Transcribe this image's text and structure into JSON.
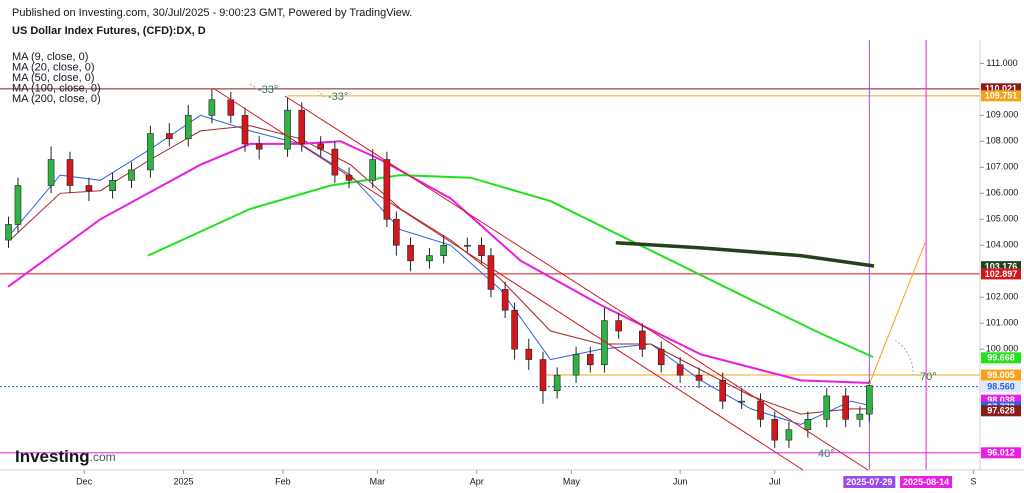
{
  "header": {
    "published": "Published on Investing.com, 30/Jul/2025 - 9:00:23 GMT, Powered by TradingView.",
    "logo_main": "Investing",
    "logo_suffix": ".com"
  },
  "chart_data": {
    "type": "candlestick",
    "title": "US Dollar Index Futures, (CFD):DX, D",
    "up_color": "#2fb344",
    "down_color": "#d3171c",
    "x": [
      -16,
      -14,
      -7,
      -3,
      1,
      6,
      10,
      14,
      18,
      22,
      27,
      31,
      34,
      37,
      43,
      46,
      50,
      53,
      56,
      61,
      64,
      66,
      69,
      73,
      76,
      81,
      84,
      86,
      89,
      91,
      94,
      97,
      100,
      104,
      107,
      110,
      113,
      118,
      122,
      126,
      130,
      135,
      139,
      143,
      146,
      149,
      153,
      157,
      161,
      164,
      166
    ],
    "open": [
      104.2,
      104.8,
      106.3,
      107.3,
      106.3,
      106.1,
      106.5,
      106.9,
      108.3,
      108.1,
      109.0,
      109.6,
      109.0,
      107.9,
      107.7,
      109.2,
      107.9,
      107.7,
      106.7,
      106.5,
      107.3,
      105.0,
      104.0,
      103.4,
      103.6,
      104.0,
      104.0,
      103.6,
      102.3,
      101.5,
      100.0,
      99.6,
      98.4,
      99.0,
      99.8,
      99.4,
      101.1,
      100.7,
      100.0,
      99.4,
      99.0,
      98.8,
      98.0,
      98.0,
      97.3,
      96.5,
      96.9,
      97.3,
      98.2,
      97.3,
      97.5
    ],
    "high": [
      105.1,
      106.6,
      107.8,
      107.6,
      106.6,
      106.8,
      107.2,
      108.6,
      108.7,
      109.4,
      110.0,
      109.9,
      109.3,
      108.2,
      109.7,
      109.5,
      108.2,
      108.0,
      107.0,
      107.7,
      107.6,
      105.3,
      104.3,
      103.9,
      104.4,
      104.3,
      104.3,
      103.9,
      102.6,
      101.8,
      100.4,
      99.9,
      99.3,
      100.1,
      100.1,
      101.6,
      101.4,
      101.0,
      100.3,
      99.7,
      99.3,
      99.1,
      98.5,
      98.3,
      97.6,
      97.2,
      97.6,
      98.5,
      98.5,
      97.8,
      98.8
    ],
    "low": [
      103.9,
      104.5,
      106.0,
      106.0,
      105.7,
      105.8,
      106.2,
      106.6,
      107.8,
      107.8,
      108.7,
      108.7,
      107.6,
      107.3,
      107.4,
      107.6,
      107.4,
      106.4,
      106.2,
      106.2,
      104.7,
      103.6,
      103.0,
      103.1,
      103.3,
      103.7,
      103.3,
      102.0,
      101.2,
      99.6,
      99.2,
      97.9,
      98.1,
      98.7,
      99.1,
      99.1,
      100.4,
      99.7,
      99.1,
      98.7,
      98.5,
      97.7,
      97.7,
      97.0,
      96.2,
      96.2,
      96.6,
      97.0,
      97.0,
      97.0,
      97.2
    ],
    "close": [
      104.8,
      106.3,
      107.3,
      106.3,
      106.1,
      106.5,
      106.9,
      108.3,
      108.1,
      109.0,
      109.6,
      109.0,
      107.9,
      107.7,
      109.2,
      107.9,
      107.7,
      106.7,
      106.5,
      107.3,
      105.0,
      104.0,
      103.4,
      103.6,
      104.0,
      104.0,
      103.6,
      102.3,
      101.5,
      100.0,
      99.6,
      98.4,
      99.0,
      99.8,
      99.4,
      101.1,
      100.7,
      100.0,
      99.4,
      99.0,
      98.8,
      98.0,
      98.0,
      97.3,
      96.5,
      96.9,
      97.3,
      98.2,
      97.3,
      97.5,
      98.6
    ],
    "series": [
      {
        "name": "MA (9, close, 0)",
        "color": "#2b5fe8",
        "width": 1,
        "x": [
          -15.7,
          -5.1,
          3.4,
          14,
          24.6,
          35.1,
          45.7,
          56.3,
          66.9,
          77.5,
          88,
          98.6,
          109.2,
          119.8,
          130.4,
          141,
          151.5,
          162.1,
          166.8
        ],
        "values": [
          104.4,
          106.7,
          106.5,
          107.7,
          109.0,
          108.4,
          107.9,
          106.7,
          104.6,
          104.0,
          102.3,
          99.6,
          100.0,
          100.2,
          98.8,
          97.7,
          97.1,
          98.0,
          97.8
        ]
      },
      {
        "name": "MA (20, close, 0)",
        "color": "#9b2a2a",
        "width": 1,
        "x": [
          -15.7,
          -5.1,
          3.4,
          14,
          24.6,
          35.1,
          45.7,
          56.3,
          66.9,
          77.5,
          88,
          98.6,
          109.2,
          119.8,
          130.4,
          141,
          151.5,
          162.1,
          166.8
        ],
        "values": [
          104.2,
          106.0,
          106.1,
          107.3,
          108.4,
          108.6,
          108.1,
          107.1,
          105.4,
          104.2,
          102.7,
          100.7,
          100.2,
          100.2,
          99.2,
          98.2,
          97.5,
          97.7,
          97.7
        ]
      },
      {
        "name": "MA (50, close, 0)",
        "color": "#e81ee0",
        "width": 2,
        "x": [
          -16.1,
          3.4,
          24.6,
          35.1,
          45.7,
          54.2,
          62.6,
          77.5,
          92.3,
          109.2,
          130.4,
          151.5,
          166.3
        ],
        "values": [
          102.4,
          105.0,
          107.1,
          107.9,
          107.9,
          108.0,
          107.3,
          105.8,
          103.4,
          101.7,
          99.8,
          98.8,
          98.7
        ]
      },
      {
        "name": "MA (100, close, 0)",
        "color": "#22e01e",
        "width": 2,
        "x": [
          13.5,
          35.1,
          52.1,
          66.9,
          81.7,
          98.6,
          119.8,
          141,
          155.8,
          166.8
        ],
        "values": [
          103.6,
          105.4,
          106.3,
          106.7,
          106.6,
          105.7,
          103.8,
          101.9,
          100.6,
          99.7
        ]
      },
      {
        "name": "MA (200, close, 0)",
        "color": "#24401c",
        "width": 3.5,
        "x": [
          112.4,
          130.4,
          151.5,
          167
        ],
        "values": [
          104.1,
          103.9,
          103.6,
          103.2
        ]
      }
    ],
    "xlim": [
      -17.8,
      189.4
    ],
    "ylim": [
      95.35,
      111.9
    ],
    "xticks": [
      {
        "value": 0,
        "label": "Dec"
      },
      {
        "value": 21,
        "label": "2025"
      },
      {
        "value": 42,
        "label": "Feb"
      },
      {
        "value": 62,
        "label": "Mar"
      },
      {
        "value": 83,
        "label": "Apr"
      },
      {
        "value": 103,
        "label": "May"
      },
      {
        "value": 126,
        "label": "Jun"
      },
      {
        "value": 146,
        "label": "Jul"
      },
      {
        "value": 188,
        "label": "S"
      }
    ],
    "yticks": [
      {
        "value": 111,
        "label": "111.000"
      },
      {
        "value": 109,
        "label": "109.000"
      },
      {
        "value": 108,
        "label": "108.000"
      },
      {
        "value": 107,
        "label": "107.000"
      },
      {
        "value": 106,
        "label": "106.000"
      },
      {
        "value": 105,
        "label": "105.000"
      },
      {
        "value": 104,
        "label": "104.000"
      },
      {
        "value": 102,
        "label": "102.000"
      },
      {
        "value": 101,
        "label": "101.000"
      },
      {
        "value": 100,
        "label": "100.000"
      }
    ],
    "price_tags": [
      {
        "value": 110.021,
        "color": "#8b1a1a",
        "line": "solid"
      },
      {
        "value": 109.751,
        "color": "#f7a21b",
        "line": "solid",
        "from": 43
      },
      {
        "value": 103.176,
        "color": "#24401c"
      },
      {
        "value": 102.897,
        "color": "#d3171c",
        "line": "solid"
      },
      {
        "value": 99.668,
        "color": "#22e01e"
      },
      {
        "value": 99.005,
        "color": "#f7a21b",
        "line": "solid",
        "from": 97
      },
      {
        "value": {
          "value": 98.56,
          "label": "98.560"
        },
        "color": "#2b5fe8",
        "line": "dotted",
        "light": true
      },
      {
        "value": 98.038,
        "color": "#e81ee0"
      },
      {
        "value": 97.773,
        "color": "#2b5fe8"
      },
      {
        "value": 97.628,
        "color": "#8b1a1a"
      },
      {
        "value": 96.012,
        "color": "#e81ee0",
        "line": "solid"
      }
    ],
    "markers": [
      {
        "x": 166,
        "label": "2025-07-29",
        "color": "#9b4dea"
      },
      {
        "x": 178,
        "label": "2025-08-14",
        "color": "#e81ee0"
      }
    ],
    "annotations": [
      "-33°",
      "-33°",
      "70°",
      "40°"
    ]
  }
}
